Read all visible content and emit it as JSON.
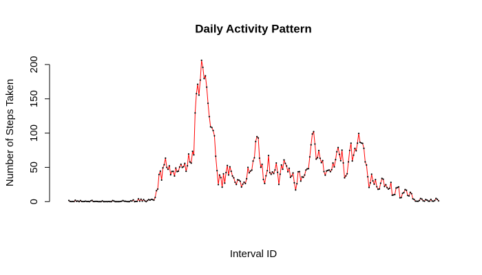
{
  "chart_data": {
    "type": "line",
    "title": "Daily Activity Pattern",
    "x_label": "Interval ID",
    "y_label": "Number of Steps Taken",
    "values": [
      1.7,
      0.3,
      0.1,
      0.2,
      0.1,
      2.1,
      0.5,
      0.9,
      0,
      1.5,
      0.3,
      0.1,
      0.3,
      0.7,
      0.2,
      0.3,
      0,
      1.1,
      1.8,
      0.2,
      0.2,
      0.4,
      0.3,
      0,
      0,
      0,
      1.1,
      0,
      0,
      0.1,
      0,
      0.2,
      0,
      0,
      1.5,
      0.9,
      0,
      0,
      0,
      0,
      0.2,
      0.6,
      1.6,
      0.6,
      0.5,
      0.1,
      0,
      0,
      1.2,
      0.9,
      2.6,
      0,
      0.3,
      0.4,
      4.1,
      0.7,
      3.5,
      0.8,
      3.1,
      1.1,
      0,
      1.6,
      3.0,
      2.2,
      3.3,
      3.0,
      2.1,
      6.1,
      16.0,
      18.3,
      39.5,
      44.5,
      31.5,
      49.3,
      53.8,
      63.5,
      50.0,
      47.1,
      52.2,
      39.3,
      44.0,
      44.2,
      37.4,
      49.0,
      43.8,
      44.4,
      50.5,
      54.5,
      49.9,
      51.0,
      55.7,
      44.3,
      52.3,
      69.5,
      57.8,
      56.2,
      73.4,
      68.2,
      129.4,
      157.5,
      171.2,
      155.4,
      177.3,
      206.2,
      195.9,
      179.6,
      183.4,
      167.0,
      143.5,
      124.0,
      109.1,
      108.1,
      103.7,
      96.0,
      66.2,
      45.2,
      24.8,
      38.8,
      35.0,
      21.1,
      40.6,
      27.0,
      42.4,
      52.7,
      38.9,
      50.8,
      44.3,
      37.4,
      34.7,
      28.3,
      25.1,
      31.9,
      31.4,
      29.7,
      21.3,
      25.5,
      28.4,
      26.5,
      33.4,
      50.0,
      42.0,
      44.6,
      46.0,
      59.2,
      63.9,
      87.7,
      94.8,
      92.8,
      63.4,
      50.2,
      54.5,
      32.4,
      26.5,
      37.7,
      45.1,
      67.3,
      42.3,
      39.9,
      43.3,
      41.0,
      46.2,
      56.4,
      42.8,
      25.1,
      40.0,
      53.5,
      47.3,
      60.8,
      55.8,
      52.0,
      43.6,
      48.7,
      35.5,
      37.5,
      41.8,
      27.5,
      17.1,
      26.1,
      43.6,
      43.8,
      30.0,
      36.1,
      35.5,
      38.8,
      46.0,
      47.8,
      48.1,
      65.3,
      82.9,
      98.7,
      102.1,
      84.0,
      62.1,
      64.1,
      74.5,
      63.2,
      56.9,
      59.8,
      43.9,
      38.6,
      44.7,
      45.5,
      46.2,
      43.7,
      46.6,
      56.3,
      50.7,
      61.2,
      72.7,
      78.9,
      68.9,
      59.7,
      75.1,
      56.5,
      34.8,
      37.5,
      40.7,
      58.0,
      74.7,
      85.3,
      59.3,
      67.8,
      77.7,
      74.2,
      85.3,
      99.5,
      86.6,
      85.6,
      84.9,
      77.8,
      58.0,
      53.4,
      36.3,
      20.7,
      27.4,
      40.0,
      30.2,
      25.5,
      32.2,
      21.8,
      18.0,
      18.5,
      26.9,
      33.9,
      32.8,
      22.1,
      24.8,
      20.5,
      18.3,
      19.5,
      28.1,
      9.3,
      9.8,
      10.3,
      19.8,
      20.6,
      21.5,
      5.6,
      5.9,
      12.1,
      13.1,
      17.6,
      16.6,
      9.0,
      8.3,
      13.6,
      11.6,
      4.1,
      3.2,
      0.8,
      0.6,
      0.5,
      1.5,
      4.5,
      3.7,
      1.2,
      0.6,
      3.0,
      2.2,
      0.8,
      0.7,
      3.3,
      0.9,
      0.6,
      1.6,
      4.7,
      3.3,
      1.1
    ],
    "color": "red",
    "point_color": "black",
    "ylim": [
      -8.25,
      214.4
    ],
    "yticks": [
      0,
      50,
      100,
      150,
      200
    ]
  }
}
